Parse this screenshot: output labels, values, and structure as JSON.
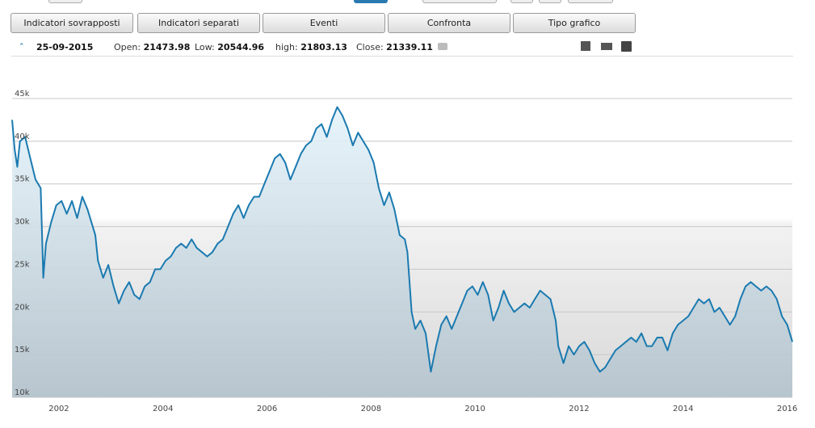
{
  "toolbar": {
    "buttons": [
      "Indicatori sovrapposti",
      "Indicatori separati",
      "Eventi",
      "Confronta",
      "Tipo grafico"
    ]
  },
  "info": {
    "date": "25-09-2015",
    "items": [
      {
        "label": "Open:",
        "value": "21473.98"
      },
      {
        "label": "Low:",
        "value": "20544.96"
      },
      {
        "label": "high:",
        "value": "21803.13"
      },
      {
        "label": "Close:",
        "value": "21339.11"
      }
    ]
  },
  "chart_data": {
    "type": "line",
    "x": [
      2001.1,
      2001.15,
      2001.2,
      2001.25,
      2001.35,
      2001.45,
      2001.55,
      2001.65,
      2001.7,
      2001.75,
      2001.85,
      2001.95,
      2002.05,
      2002.15,
      2002.25,
      2002.35,
      2002.45,
      2002.55,
      2002.65,
      2002.7,
      2002.75,
      2002.85,
      2002.95,
      2003.05,
      2003.15,
      2003.25,
      2003.35,
      2003.45,
      2003.55,
      2003.65,
      2003.75,
      2003.85,
      2003.95,
      2004.05,
      2004.15,
      2004.25,
      2004.35,
      2004.45,
      2004.55,
      2004.65,
      2004.75,
      2004.85,
      2004.95,
      2005.05,
      2005.15,
      2005.25,
      2005.35,
      2005.45,
      2005.55,
      2005.65,
      2005.75,
      2005.85,
      2005.95,
      2006.05,
      2006.15,
      2006.25,
      2006.35,
      2006.45,
      2006.55,
      2006.65,
      2006.75,
      2006.85,
      2006.95,
      2007.05,
      2007.15,
      2007.25,
      2007.35,
      2007.45,
      2007.55,
      2007.65,
      2007.75,
      2007.85,
      2007.95,
      2008.05,
      2008.15,
      2008.25,
      2008.35,
      2008.45,
      2008.55,
      2008.65,
      2008.7,
      2008.78,
      2008.85,
      2008.95,
      2009.05,
      2009.15,
      2009.25,
      2009.35,
      2009.45,
      2009.55,
      2009.65,
      2009.75,
      2009.85,
      2009.95,
      2010.05,
      2010.15,
      2010.25,
      2010.35,
      2010.45,
      2010.55,
      2010.65,
      2010.75,
      2010.85,
      2010.95,
      2011.05,
      2011.15,
      2011.25,
      2011.35,
      2011.45,
      2011.55,
      2011.6,
      2011.7,
      2011.8,
      2011.9,
      2012.0,
      2012.1,
      2012.2,
      2012.3,
      2012.4,
      2012.5,
      2012.6,
      2012.7,
      2012.8,
      2012.9,
      2013.0,
      2013.1,
      2013.2,
      2013.3,
      2013.4,
      2013.5,
      2013.6,
      2013.7,
      2013.8,
      2013.9,
      2014.0,
      2014.1,
      2014.2,
      2014.3,
      2014.4,
      2014.5,
      2014.6,
      2014.7,
      2014.8,
      2014.9,
      2015.0,
      2015.1,
      2015.2,
      2015.3,
      2015.4,
      2015.5,
      2015.6,
      2015.7,
      2015.8,
      2015.9,
      2016.0,
      2016.1
    ],
    "values": [
      42500,
      39000,
      37000,
      40000,
      40500,
      38000,
      35500,
      34500,
      24000,
      28000,
      30500,
      32500,
      33000,
      31500,
      33000,
      31000,
      33500,
      32000,
      30000,
      29000,
      26000,
      24000,
      25500,
      23000,
      21000,
      22500,
      23500,
      22000,
      21500,
      23000,
      23500,
      25000,
      25000,
      26000,
      26500,
      27500,
      28000,
      27500,
      28500,
      27500,
      27000,
      26500,
      27000,
      28000,
      28500,
      30000,
      31500,
      32500,
      31000,
      32500,
      33500,
      33500,
      35000,
      36500,
      38000,
      38500,
      37500,
      35500,
      37000,
      38500,
      39500,
      40000,
      41500,
      42000,
      40500,
      42500,
      44000,
      43000,
      41500,
      39500,
      41000,
      40000,
      39000,
      37500,
      34500,
      32500,
      34000,
      32000,
      29000,
      28500,
      27000,
      20000,
      18000,
      19000,
      17500,
      13000,
      16000,
      18500,
      19500,
      18000,
      19500,
      21000,
      22500,
      23000,
      22000,
      23500,
      22000,
      19000,
      20500,
      22500,
      21000,
      20000,
      20500,
      21000,
      20500,
      21500,
      22500,
      22000,
      21500,
      19000,
      16000,
      14000,
      16000,
      15000,
      16000,
      16500,
      15500,
      14000,
      13000,
      13500,
      14500,
      15500,
      16000,
      16500,
      17000,
      16500,
      17500,
      16000,
      16000,
      17000,
      17000,
      15500,
      17500,
      18500,
      19000,
      19500,
      20500,
      21500,
      21000,
      21500,
      20000,
      20500,
      19500,
      18500,
      19500,
      21500,
      23000,
      23500,
      23000,
      22500,
      23000,
      22500,
      21500,
      19500,
      18500,
      16500
    ],
    "color": "#1a7ab0",
    "xlim": [
      2001.1,
      2016.1
    ],
    "xticks": [
      2002,
      2004,
      2006,
      2008,
      2010,
      2012,
      2014,
      2016
    ],
    "ylim": [
      10000,
      45000
    ],
    "yticks": [
      {
        "value": 10000,
        "label": "10k"
      },
      {
        "value": 15000,
        "label": "15k"
      },
      {
        "value": 20000,
        "label": "20k"
      },
      {
        "value": 25000,
        "label": "25k"
      },
      {
        "value": 30000,
        "label": "30k"
      },
      {
        "value": 35000,
        "label": "35k"
      },
      {
        "value": 40000,
        "label": "40k"
      },
      {
        "value": 45000,
        "label": "45k"
      }
    ],
    "grid": true
  }
}
